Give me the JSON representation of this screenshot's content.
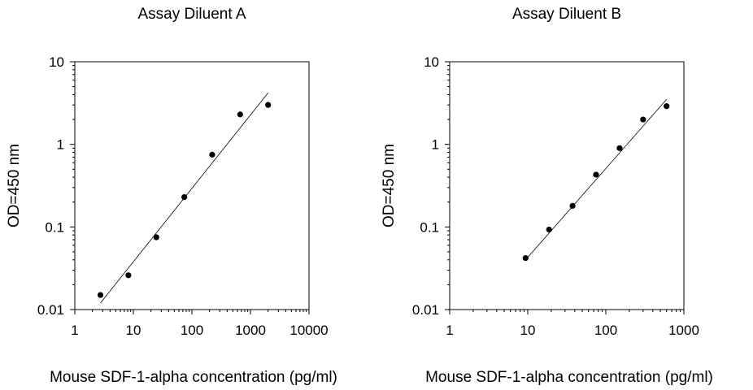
{
  "chart_data": [
    {
      "type": "scatter",
      "title": "Assay Diluent A",
      "xlabel": "Mouse SDF-1-alpha concentration (pg/ml)",
      "ylabel": "OD=450 nm",
      "x_scale": "log",
      "y_scale": "log",
      "xlim": [
        1,
        10000
      ],
      "ylim": [
        0.01,
        10
      ],
      "x_ticks": [
        1,
        10,
        100,
        1000,
        10000
      ],
      "x_tick_labels": [
        "1",
        "10",
        "100",
        "1000",
        "10000"
      ],
      "y_ticks": [
        0.01,
        0.1,
        1,
        10
      ],
      "y_tick_labels": [
        "0.01",
        "0.1",
        "1",
        "10"
      ],
      "grid": false,
      "series": [
        {
          "x": [
            2.74,
            8.23,
            24.7,
            74.1,
            222,
            667,
            2000
          ],
          "y": [
            0.015,
            0.026,
            0.075,
            0.23,
            0.75,
            2.3,
            3.0
          ]
        }
      ],
      "fit_line": {
        "x": [
          2.74,
          2000
        ],
        "y": [
          0.012,
          4.2
        ]
      }
    },
    {
      "type": "scatter",
      "title": "Assay Diluent B",
      "xlabel": "Mouse SDF-1-alpha concentration (pg/ml)",
      "ylabel": "OD=450 nm",
      "x_scale": "log",
      "y_scale": "log",
      "xlim": [
        1,
        1000
      ],
      "ylim": [
        0.01,
        10
      ],
      "x_ticks": [
        1,
        10,
        100,
        1000
      ],
      "x_tick_labels": [
        "1",
        "10",
        "100",
        "1000"
      ],
      "y_ticks": [
        0.01,
        0.1,
        1,
        10
      ],
      "y_tick_labels": [
        "0.01",
        "0.1",
        "1",
        "10"
      ],
      "grid": false,
      "series": [
        {
          "x": [
            9.38,
            18.75,
            37.5,
            75,
            150,
            300,
            600
          ],
          "y": [
            0.042,
            0.093,
            0.18,
            0.43,
            0.9,
            2.0,
            2.9
          ]
        }
      ],
      "fit_line": {
        "x": [
          9.38,
          600
        ],
        "y": [
          0.04,
          3.5
        ]
      }
    }
  ]
}
